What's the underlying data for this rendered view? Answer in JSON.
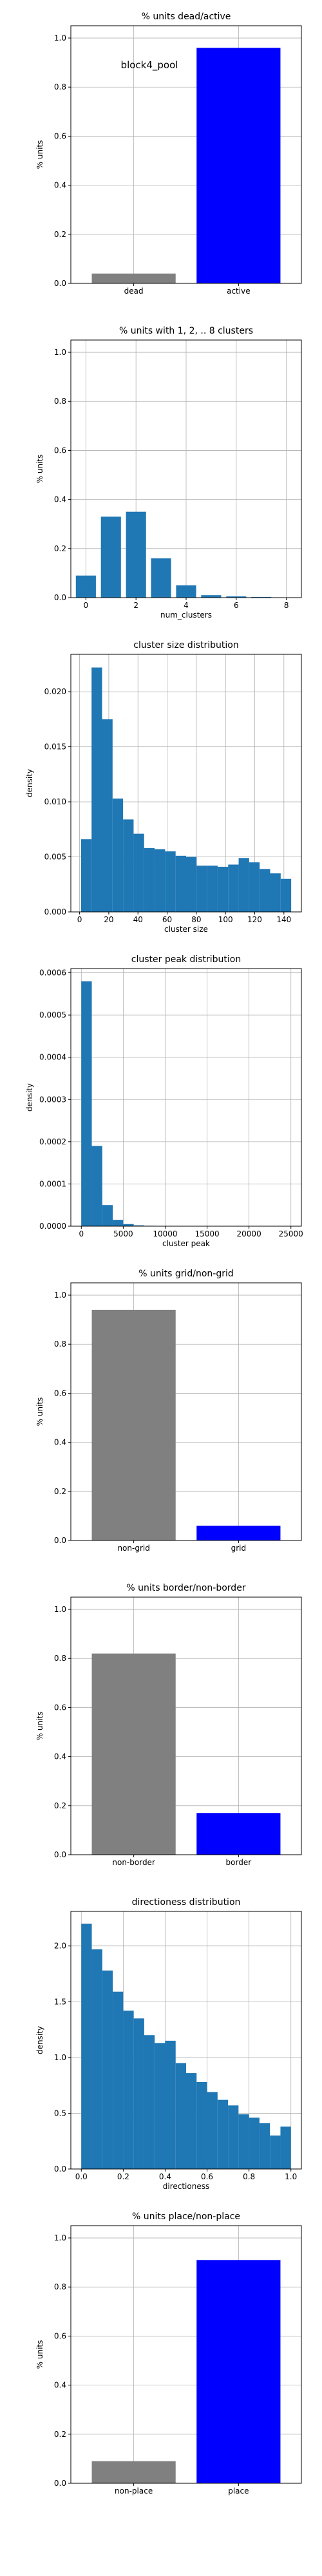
{
  "figure_label": "block4_pool",
  "chart_data": [
    {
      "type": "bar",
      "title": "% units dead/active",
      "xlabel": "",
      "ylabel": "% units",
      "categories": [
        "dead",
        "active"
      ],
      "values": [
        0.04,
        0.96
      ],
      "colors": [
        "#808080",
        "#0000ff"
      ],
      "ylim": [
        0,
        1.05
      ],
      "yticks": [
        "0.0",
        "0.2",
        "0.4",
        "0.6",
        "0.8",
        "1.0"
      ],
      "annotation": "block4_pool",
      "grid": true
    },
    {
      "type": "bar",
      "title": "% units with 1, 2, .. 8 clusters",
      "xlabel": "num_clusters",
      "ylabel": "% units",
      "x": [
        0,
        1,
        2,
        3,
        4,
        5,
        6,
        7,
        8
      ],
      "values": [
        0.09,
        0.33,
        0.35,
        0.16,
        0.05,
        0.01,
        0.005,
        0.003,
        0.0
      ],
      "color": "#1f77b4",
      "xlim": [
        -0.6,
        8.6
      ],
      "ylim": [
        0,
        1.05
      ],
      "xticks": [
        "0",
        "2",
        "4",
        "6",
        "8"
      ],
      "yticks": [
        "0.0",
        "0.2",
        "0.4",
        "0.6",
        "0.8",
        "1.0"
      ],
      "grid": true
    },
    {
      "type": "bar",
      "title": "cluster size distribution",
      "xlabel": "cluster size",
      "ylabel": "density",
      "bin_edges": [
        1,
        8.2,
        15.4,
        22.6,
        29.8,
        37,
        44.2,
        51.4,
        58.6,
        65.8,
        73,
        80.2,
        87.4,
        94.6,
        101.8,
        109,
        116.2,
        123.4,
        130.6,
        137.8,
        145
      ],
      "values": [
        0.0066,
        0.0222,
        0.0175,
        0.0103,
        0.0084,
        0.0071,
        0.0058,
        0.0057,
        0.0055,
        0.0051,
        0.005,
        0.0042,
        0.0042,
        0.0041,
        0.0043,
        0.0049,
        0.0045,
        0.0039,
        0.0035,
        0.003
      ],
      "color": "#1f77b4",
      "xlim": [
        -6,
        152
      ],
      "ylim": [
        0,
        0.0234
      ],
      "xticks": [
        "0",
        "20",
        "40",
        "60",
        "80",
        "100",
        "120",
        "140"
      ],
      "yticks": [
        "0.000",
        "0.005",
        "0.010",
        "0.015",
        "0.020"
      ],
      "grid": true
    },
    {
      "type": "bar",
      "title": "cluster peak distribution",
      "xlabel": "cluster peak",
      "ylabel": "density",
      "bin_edges": [
        0,
        1250,
        2500,
        3750,
        5000,
        6250,
        7500,
        8750,
        10000,
        11250,
        12500,
        13750,
        15000,
        16250,
        17500,
        18750,
        20000,
        21250,
        22500,
        23750,
        25000
      ],
      "values": [
        0.00058,
        0.00019,
        5e-05,
        1.5e-05,
        5e-06,
        2e-06,
        1e-06,
        5e-07,
        3e-07,
        2e-07,
        1e-07,
        1e-07,
        1e-07,
        0,
        0,
        0,
        0,
        0,
        0,
        1e-07
      ],
      "color": "#1f77b4",
      "xlim": [
        -1250,
        26250
      ],
      "ylim": [
        0,
        0.00061
      ],
      "xticks": [
        "0",
        "5000",
        "10000",
        "15000",
        "20000",
        "25000"
      ],
      "yticks": [
        "0.0000",
        "0.0001",
        "0.0002",
        "0.0003",
        "0.0004",
        "0.0005",
        "0.0006"
      ],
      "grid": true
    },
    {
      "type": "bar",
      "title": "% units grid/non-grid",
      "xlabel": "",
      "ylabel": "% units",
      "categories": [
        "non-grid",
        "grid"
      ],
      "values": [
        0.94,
        0.06
      ],
      "colors": [
        "#808080",
        "#0000ff"
      ],
      "ylim": [
        0,
        1.05
      ],
      "yticks": [
        "0.0",
        "0.2",
        "0.4",
        "0.6",
        "0.8",
        "1.0"
      ],
      "grid": true
    },
    {
      "type": "bar",
      "title": "% units border/non-border",
      "xlabel": "",
      "ylabel": "% units",
      "categories": [
        "non-border",
        "border"
      ],
      "values": [
        0.82,
        0.17
      ],
      "colors": [
        "#808080",
        "#0000ff"
      ],
      "ylim": [
        0,
        1.05
      ],
      "yticks": [
        "0.0",
        "0.2",
        "0.4",
        "0.6",
        "0.8",
        "1.0"
      ],
      "grid": true
    },
    {
      "type": "bar",
      "title": "directioness distribution",
      "xlabel": "directioness",
      "ylabel": "density",
      "bin_edges": [
        0,
        0.05,
        0.1,
        0.15,
        0.2,
        0.25,
        0.3,
        0.35,
        0.4,
        0.45,
        0.5,
        0.55,
        0.6,
        0.65,
        0.7,
        0.75,
        0.8,
        0.85,
        0.9,
        0.95,
        1.0
      ],
      "values": [
        2.2,
        1.97,
        1.78,
        1.59,
        1.42,
        1.35,
        1.2,
        1.13,
        1.15,
        0.95,
        0.86,
        0.78,
        0.69,
        0.62,
        0.57,
        0.49,
        0.46,
        0.41,
        0.3,
        0.38
      ],
      "color": "#1f77b4",
      "xlim": [
        -0.05,
        1.05
      ],
      "ylim": [
        0,
        2.31
      ],
      "xticks": [
        "0.0",
        "0.2",
        "0.4",
        "0.6",
        "0.8",
        "1.0"
      ],
      "yticks": [
        "0.0",
        "0.5",
        "1.0",
        "1.5",
        "2.0"
      ],
      "grid": true
    },
    {
      "type": "bar",
      "title": "% units place/non-place",
      "xlabel": "",
      "ylabel": "% units",
      "categories": [
        "non-place",
        "place"
      ],
      "values": [
        0.09,
        0.91
      ],
      "colors": [
        "#808080",
        "#0000ff"
      ],
      "ylim": [
        0,
        1.05
      ],
      "yticks": [
        "0.0",
        "0.2",
        "0.4",
        "0.6",
        "0.8",
        "1.0"
      ],
      "grid": true
    }
  ]
}
